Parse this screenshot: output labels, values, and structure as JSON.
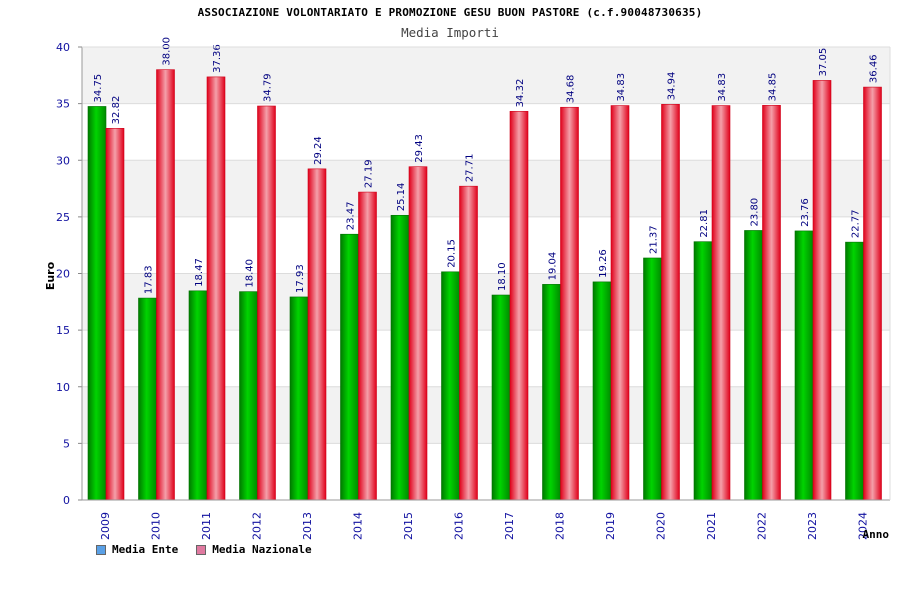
{
  "header": {
    "title": "ASSOCIAZIONE VOLONTARIATO E PROMOZIONE GESU BUON PASTORE (c.f.90048730635)",
    "subtitle": "Media Importi"
  },
  "colors": {
    "ente": "#00b000",
    "nazionale": "#e8202a",
    "ente_legend": "#5aa0e6",
    "nazionale_legend": "#e07aa0",
    "axis_text": "#1010a0",
    "label_text": "#000080",
    "band": "#f2f2f2",
    "grid": "#dcdcdc"
  },
  "legend": {
    "ente_label": "Media Ente",
    "nazionale_label": "Media Nazionale"
  },
  "chart_data": {
    "type": "bar",
    "title": "Media Importi",
    "xlabel": "Anno",
    "ylabel": "Euro",
    "ylim": [
      0,
      40
    ],
    "yticks": [
      0,
      5,
      10,
      15,
      20,
      25,
      30,
      35,
      40
    ],
    "categories": [
      "2009",
      "2010",
      "2011",
      "2012",
      "2013",
      "2014",
      "2015",
      "2016",
      "2017",
      "2018",
      "2019",
      "2020",
      "2021",
      "2022",
      "2023",
      "2024"
    ],
    "series": [
      {
        "name": "Media Ente",
        "values": [
          34.75,
          17.83,
          18.47,
          18.4,
          17.93,
          23.47,
          25.14,
          20.15,
          18.1,
          19.04,
          19.26,
          21.37,
          22.81,
          23.8,
          23.76,
          22.77
        ],
        "labels": [
          "34.75",
          "17.83",
          "18.47",
          "18.40",
          "17.93",
          "23.47",
          "25.14",
          "20.15",
          "18.10",
          "19.04",
          "19.26",
          "21.37",
          "22.81",
          "23.80",
          "23.76",
          "22.77"
        ]
      },
      {
        "name": "Media Nazionale",
        "values": [
          32.82,
          38.0,
          37.36,
          34.79,
          29.24,
          27.19,
          29.43,
          27.71,
          34.32,
          34.68,
          34.83,
          34.94,
          34.83,
          34.85,
          37.05,
          36.46
        ],
        "labels": [
          "32.82",
          "38.00",
          "37.36",
          "34.79",
          "29.24",
          "27.19",
          "29.43",
          "27.71",
          "34.32",
          "34.68",
          "34.83",
          "34.94",
          "34.83",
          "34.85",
          "37.05",
          "36.46"
        ]
      }
    ]
  }
}
